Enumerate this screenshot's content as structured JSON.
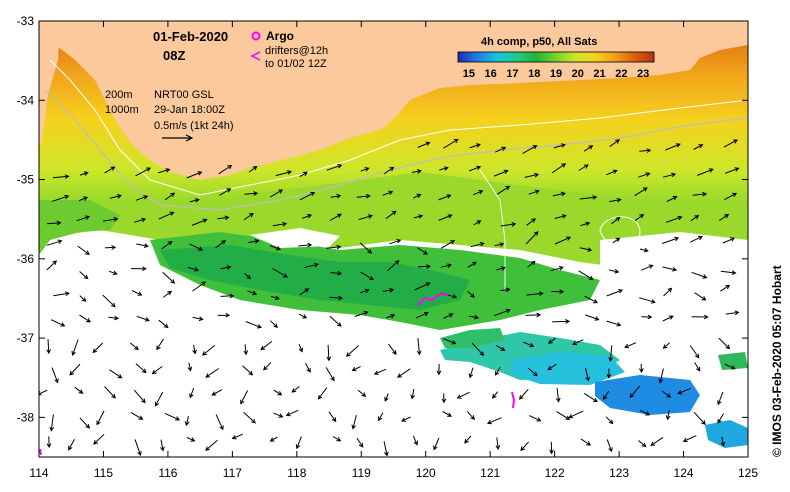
{
  "map": {
    "lon_ticks": [
      "114",
      "115",
      "116",
      "117",
      "118",
      "119",
      "120",
      "121",
      "122",
      "123",
      "124",
      "125"
    ],
    "lat_ticks": [
      "-33",
      "-34",
      "-35",
      "-36",
      "-37",
      "-38"
    ],
    "lon_range": [
      114,
      125
    ],
    "lat_range": [
      -38.5,
      -33
    ],
    "land_color": "#fbc99b",
    "cloud_color": "#ffffff"
  },
  "header": {
    "date": "01-Feb-2020",
    "time": "08Z"
  },
  "legend": {
    "argo_label": "Argo",
    "argo_symbol_color": "#ff00ff",
    "drifters_label": "drifters@12h",
    "drifters_sub": "to 01/02 12Z",
    "drifter_color": "#ff00ff"
  },
  "depth_legend": {
    "contour_200": "200m",
    "contour_1000": "1000m",
    "product": "NRT00 GSL",
    "product_time": "29-Jan 18:00Z",
    "scale_label": "0.5m/s (1kt 24h)"
  },
  "colorbar": {
    "title": "4h comp, p50, All Sats",
    "ticks": [
      "15",
      "16",
      "17",
      "18",
      "19",
      "20",
      "21",
      "22",
      "23"
    ],
    "min": 14.5,
    "max": 23.5,
    "colors": [
      "#1a2fb8",
      "#1e7fe0",
      "#19c3dc",
      "#21c98a",
      "#23b43a",
      "#78d22a",
      "#cde62a",
      "#f5d21e",
      "#f0a01a",
      "#d9620f",
      "#b83010"
    ]
  },
  "credit": "© IMOS 03-Feb-2020 05:07 Hobart"
}
